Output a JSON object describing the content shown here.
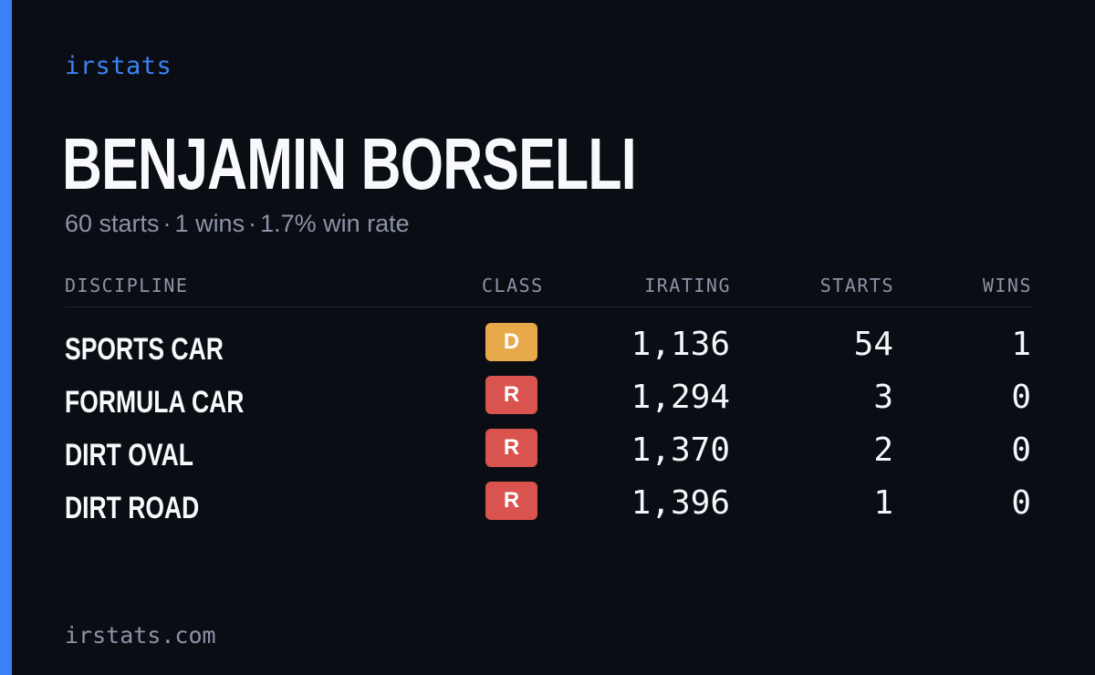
{
  "brand": "irstats",
  "driver": {
    "name": "BENJAMIN BORSELLI"
  },
  "summary": {
    "starts": "60 starts",
    "wins": "1 wins",
    "win_rate": "1.7% win rate",
    "separator": "·"
  },
  "table": {
    "headers": {
      "discipline": "DISCIPLINE",
      "class": "CLASS",
      "irating": "IRATING",
      "starts": "STARTS",
      "wins": "WINS"
    },
    "rows": [
      {
        "discipline": "SPORTS CAR",
        "class": "D",
        "class_color": "#e8a94a",
        "irating": "1,136",
        "starts": "54",
        "wins": "1"
      },
      {
        "discipline": "FORMULA CAR",
        "class": "R",
        "class_color": "#d9534f",
        "irating": "1,294",
        "starts": "3",
        "wins": "0"
      },
      {
        "discipline": "DIRT OVAL",
        "class": "R",
        "class_color": "#d9534f",
        "irating": "1,370",
        "starts": "2",
        "wins": "0"
      },
      {
        "discipline": "DIRT ROAD",
        "class": "R",
        "class_color": "#d9534f",
        "irating": "1,396",
        "starts": "1",
        "wins": "0"
      }
    ]
  },
  "footer": "irstats.com",
  "colors": {
    "background": "#0b0d14",
    "accent": "#3b82f6",
    "muted_text": "#8b93a6",
    "class_d": "#e8a94a",
    "class_r": "#d9534f"
  }
}
